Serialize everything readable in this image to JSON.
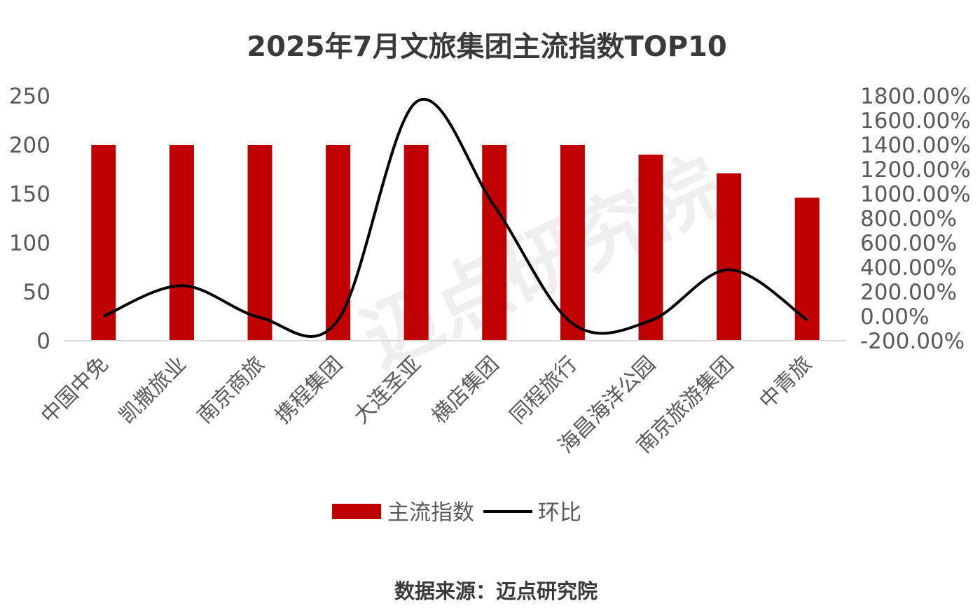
{
  "chart_data": {
    "type": "bar",
    "title": "2025年7月文旅集团主流指数TOP10",
    "categories": [
      "中国中免",
      "凯撒旅业",
      "南京商旅",
      "携程集团",
      "大连圣亚",
      "横店集团",
      "同程旅行",
      "海昌海洋公园",
      "南京旅游集团",
      "中青旅"
    ],
    "series": [
      {
        "name": "主流指数",
        "type": "bar",
        "axis": "left",
        "color": "#c00000",
        "values": [
          200,
          200,
          200,
          200,
          200,
          200,
          200,
          190,
          171,
          146
        ]
      },
      {
        "name": "环比",
        "type": "line",
        "axis": "right",
        "color": "#000000",
        "values": [
          0.0,
          250.0,
          -10.0,
          -30.0,
          1750.0,
          900.0,
          -60.0,
          -35.0,
          380.0,
          -30.0
        ]
      }
    ],
    "y_left": {
      "min": 0,
      "max": 250,
      "ticks": [
        "0",
        "50",
        "100",
        "150",
        "200",
        "250"
      ]
    },
    "y_right": {
      "min": -200,
      "max": 1800,
      "ticks": [
        "-200.00%",
        "0.00%",
        "200.00%",
        "400.00%",
        "600.00%",
        "800.00%",
        "1000.00%",
        "1200.00%",
        "1400.00%",
        "1600.00%",
        "1800.00%"
      ]
    },
    "grid": false,
    "legend": "bottom",
    "source": "数据来源：迈点研究院",
    "watermark": "迈点研究院"
  }
}
